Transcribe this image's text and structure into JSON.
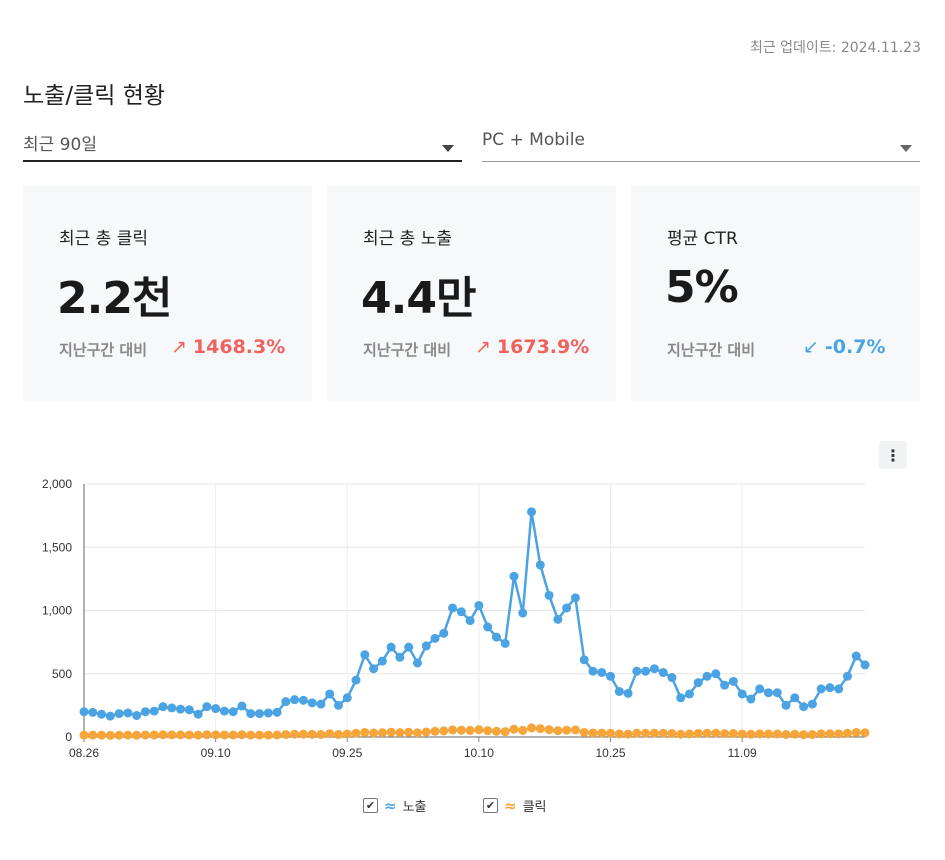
{
  "header": {
    "updated": "최근 업데이트: 2024.11.23",
    "title": "노출/클릭 현황"
  },
  "filters": {
    "period": "최근 90일",
    "device": "PC + Mobile"
  },
  "cards": [
    {
      "label": "최근 총 클릭",
      "value": "2.2천",
      "compare_label": "지난구간 대비",
      "delta": "1468.3%",
      "trend": "up"
    },
    {
      "label": "최근 총 노출",
      "value": "4.4만",
      "compare_label": "지난구간 대비",
      "delta": "1673.9%",
      "trend": "up"
    },
    {
      "label": "평균 CTR",
      "value": "5%",
      "compare_label": "지난구간 대비",
      "delta": "-0.7%",
      "trend": "down"
    }
  ],
  "icons": {
    "arrow_up": "↗",
    "arrow_down": "↙",
    "more": "⋮",
    "check": "✔",
    "wave": "≈"
  },
  "colors": {
    "impressions": "#4ba3e3",
    "clicks": "#f5a53a",
    "up": "#f0625e",
    "down": "#4ba3e3"
  },
  "legend": {
    "impressions": "노출",
    "clicks": "클릭"
  },
  "chart_data": {
    "type": "line",
    "x_tick_labels": [
      "08.26",
      "09.10",
      "09.25",
      "10.10",
      "10.25",
      "11.09"
    ],
    "x_tick_positions": [
      0,
      15,
      30,
      45,
      60,
      75
    ],
    "y_ticks": [
      "0",
      "500",
      "1,000",
      "1,500",
      "2,000"
    ],
    "ylim": [
      0,
      2000
    ],
    "grid": true,
    "legend_position": "bottom",
    "x_start": "08.26",
    "series": [
      {
        "name": "노출",
        "values": [
          200,
          195,
          180,
          165,
          185,
          190,
          170,
          200,
          205,
          240,
          230,
          220,
          215,
          180,
          240,
          225,
          205,
          200,
          245,
          185,
          185,
          190,
          195,
          280,
          295,
          290,
          270,
          260,
          340,
          250,
          310,
          450,
          650,
          540,
          600,
          710,
          630,
          710,
          585,
          720,
          780,
          820,
          1020,
          990,
          920,
          1040,
          870,
          790,
          740,
          1270,
          980,
          1780,
          1360,
          1120,
          930,
          1020,
          1100,
          610,
          520,
          510,
          480,
          360,
          345,
          520,
          520,
          540,
          510,
          470,
          310,
          340,
          430,
          480,
          500,
          410,
          440,
          340,
          300,
          380,
          350,
          350,
          250,
          310,
          240,
          260,
          380,
          390,
          380,
          480,
          640,
          570
        ]
      },
      {
        "name": "클릭",
        "values": [
          15,
          15,
          14,
          13,
          14,
          15,
          14,
          16,
          16,
          18,
          17,
          17,
          16,
          15,
          18,
          17,
          16,
          16,
          18,
          15,
          15,
          15,
          16,
          20,
          22,
          22,
          21,
          20,
          26,
          20,
          24,
          30,
          36,
          32,
          34,
          38,
          35,
          38,
          33,
          40,
          45,
          48,
          56,
          54,
          52,
          58,
          50,
          45,
          42,
          62,
          52,
          72,
          66,
          58,
          50,
          54,
          56,
          36,
          32,
          31,
          30,
          24,
          23,
          30,
          30,
          31,
          30,
          28,
          22,
          24,
          28,
          30,
          31,
          27,
          28,
          24,
          22,
          25,
          24,
          24,
          20,
          22,
          19,
          20,
          25,
          26,
          25,
          30,
          36,
          34
        ]
      }
    ]
  }
}
